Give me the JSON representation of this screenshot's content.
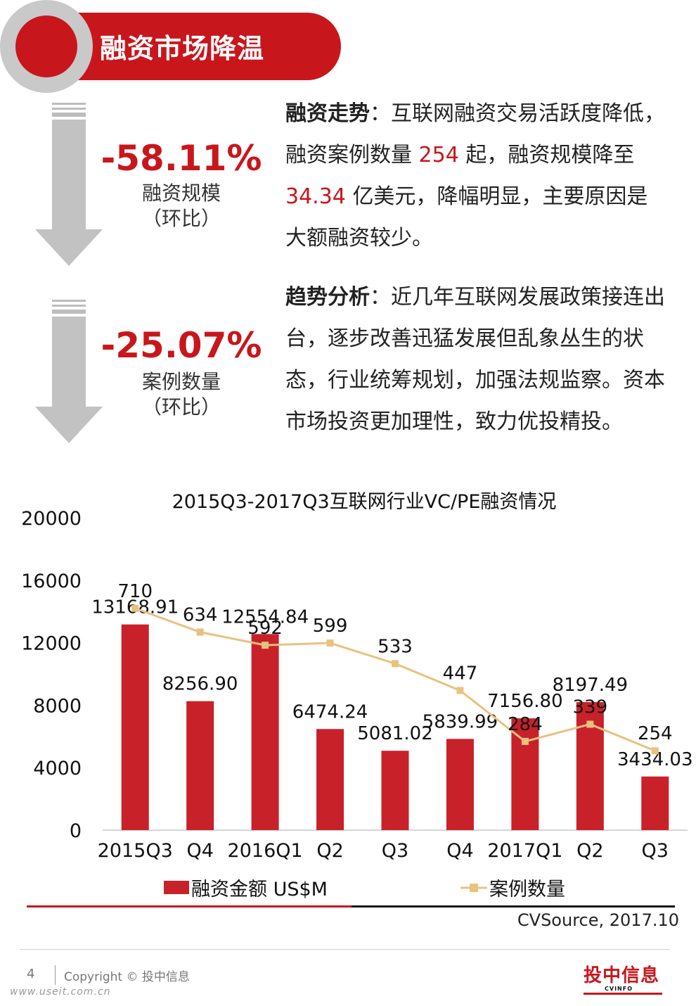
{
  "header": {
    "title": "融资市场降温"
  },
  "stats": [
    {
      "value": "-58.11%",
      "label": "融资规模",
      "sub": "（环比）"
    },
    {
      "value": "-25.07%",
      "label": "案例数量",
      "sub": "（环比）"
    }
  ],
  "paragraphs": {
    "trend": {
      "heading": "融资走势",
      "t1": "：互联网融资交易活跃度降低，融资案例数量",
      "count": "254",
      "t2": "起，融资规模降至",
      "amount": "34.34",
      "t3": "亿美元，降幅明显，主要原因是大额融资较少。"
    },
    "analysis": {
      "heading": "趋势分析",
      "text": "：近几年互联网发展政策接连出台，逐步改善迅猛发展但乱象丛生的状态，行业统筹规划，加强法规监察。资本市场投资更加理性，致力优投精投。"
    }
  },
  "chart_data": {
    "type": "bar",
    "title": "2015Q3-2017Q3互联网行业VC/PE融资情况",
    "categories": [
      "2015Q3",
      "Q4",
      "2016Q1",
      "Q2",
      "Q3",
      "Q4",
      "2017Q1",
      "Q2",
      "Q3"
    ],
    "series": [
      {
        "name": "融资金额 US$M",
        "type": "bar",
        "values": [
          13168.91,
          8256.9,
          12554.84,
          6474.24,
          5081.02,
          5839.99,
          7156.8,
          8197.49,
          3434.03
        ],
        "labels": [
          "13168.91",
          "8256.90",
          "12554.84",
          "6474.24",
          "5081.02",
          "5839.99",
          "7156.80",
          "8197.49",
          "3434.03"
        ],
        "color": "#c8212a"
      },
      {
        "name": "案例数量",
        "type": "line",
        "values": [
          710,
          634,
          592,
          599,
          533,
          447,
          284,
          339,
          254
        ],
        "labels": [
          "710",
          "634",
          "592",
          "599",
          "533",
          "447",
          "284",
          "339",
          "254"
        ],
        "color": "#e8c27f"
      }
    ],
    "ylim": [
      0,
      20000
    ],
    "yticks": [
      "0",
      "4000",
      "8000",
      "12000",
      "16000",
      "20000"
    ],
    "secondary_ylim": [
      0,
      1000
    ],
    "legend": "bottom"
  },
  "footer": {
    "source": "CVSource, 2017.10",
    "page": "4",
    "copyright": "Copyright © 投中信息",
    "watermark": "www.useit.com.cn",
    "logo": "投中信息",
    "logo_sub": "CVINFO"
  },
  "colors": {
    "accent": "#c8161d",
    "bar": "#c8212a",
    "line": "#e8c27f",
    "ring": "#c9c9c9"
  }
}
